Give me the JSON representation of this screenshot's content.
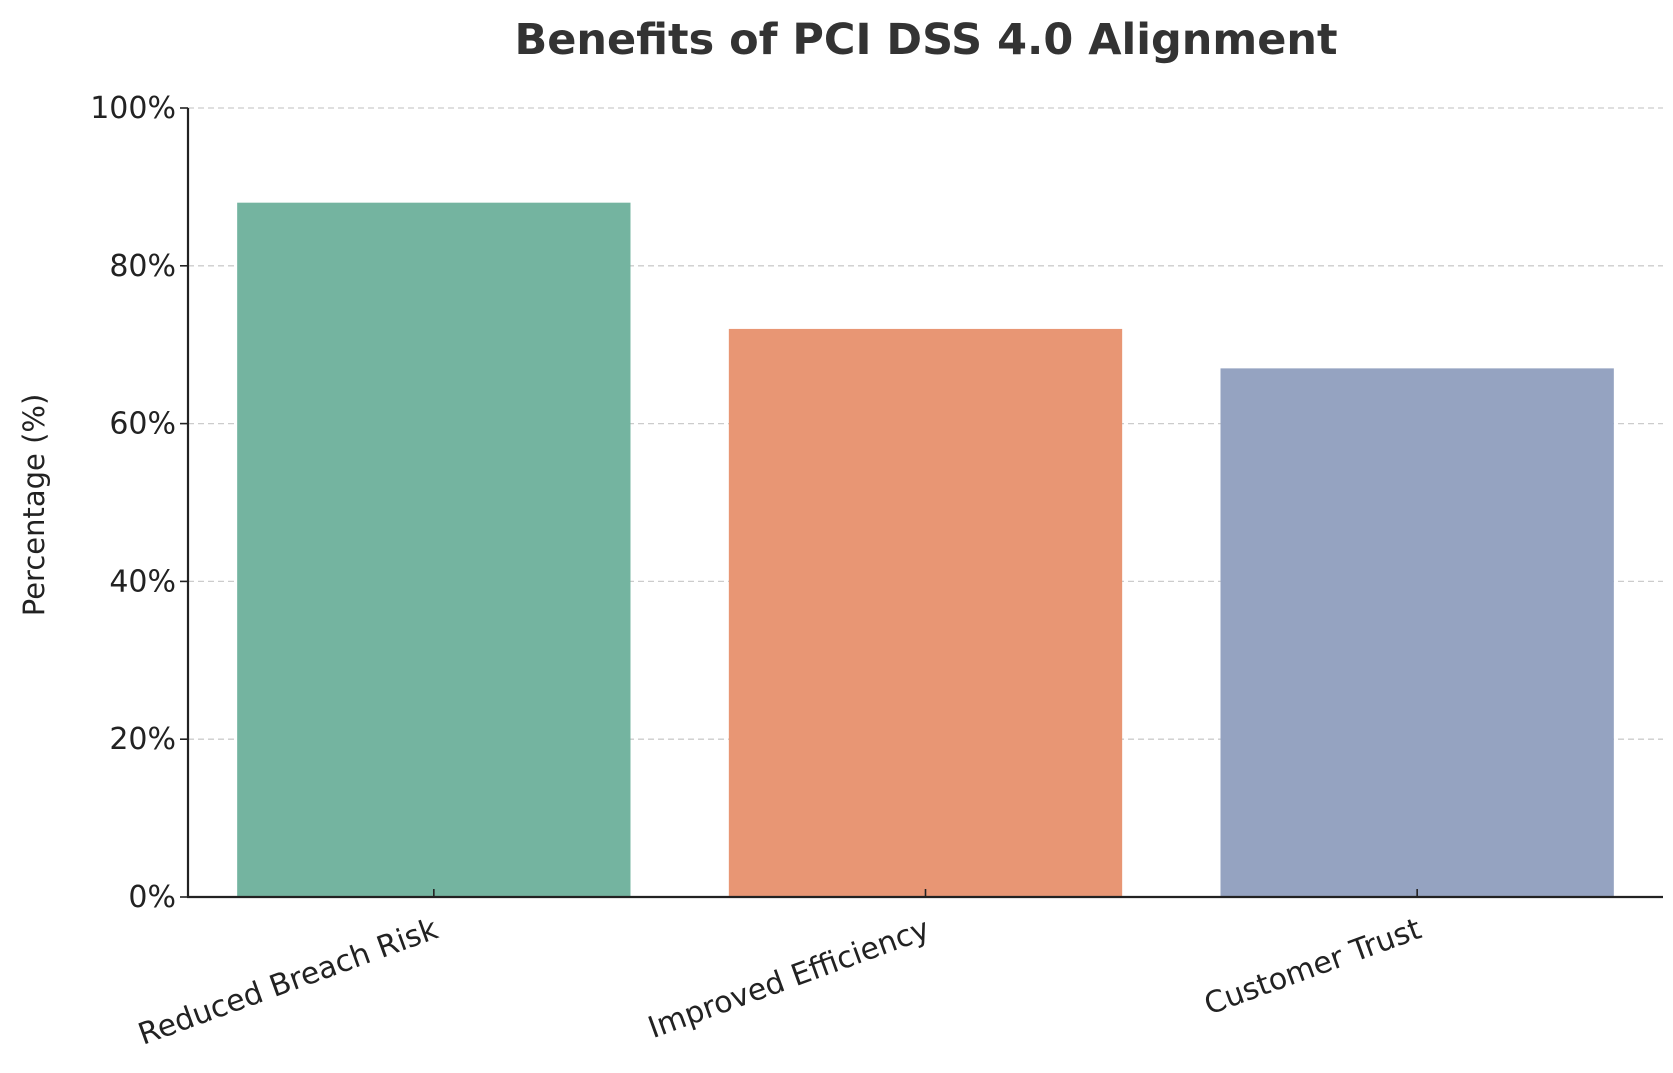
{
  "chart_data": {
    "type": "bar",
    "title": "Benefits of PCI DSS 4.0 Alignment",
    "xlabel": "",
    "ylabel": "Percentage (%)",
    "categories": [
      "Reduced Breach Risk",
      "Improved Efficiency",
      "Customer Trust"
    ],
    "values": [
      88,
      72,
      67
    ],
    "colors": [
      "#74b4a0",
      "#e89674",
      "#95a3c1"
    ],
    "ylim": [
      0,
      100
    ],
    "yticks": [
      0,
      20,
      40,
      60,
      80,
      100
    ],
    "ytick_labels": [
      "0%",
      "20%",
      "40%",
      "60%",
      "80%",
      "100%"
    ],
    "grid": "y-dashed",
    "legend": "none"
  }
}
